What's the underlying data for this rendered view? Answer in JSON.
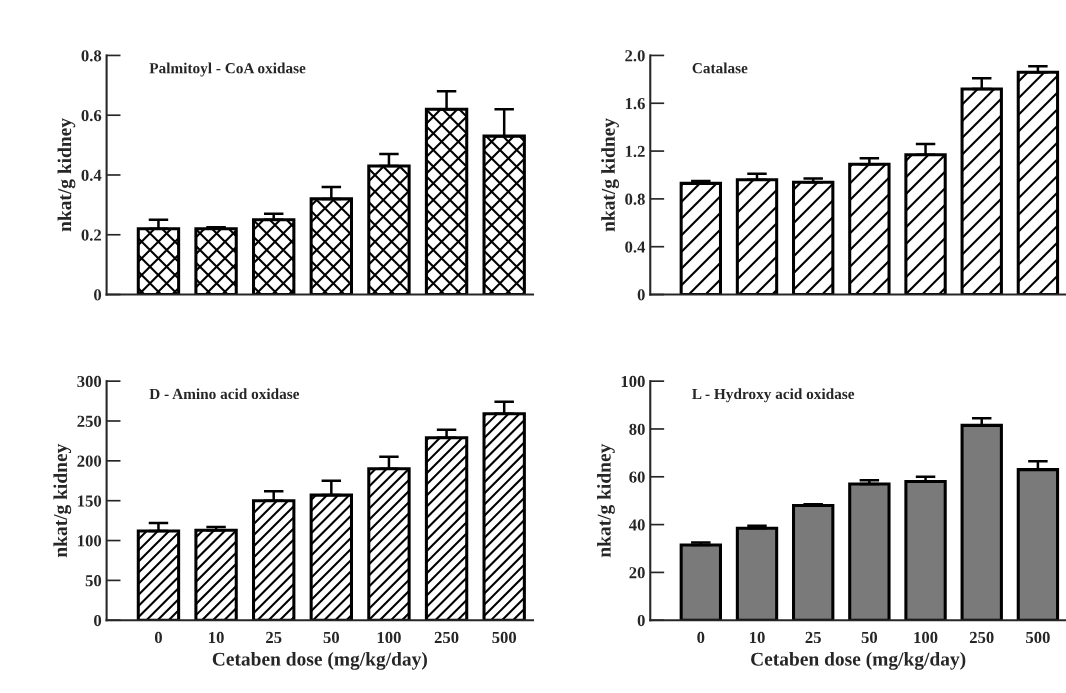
{
  "chart_data": [
    {
      "type": "bar",
      "title": "Palmitoyl - CoA oxidase",
      "ylabel": "nkat/g kidney",
      "categories": [
        "0",
        "10",
        "25",
        "50",
        "100",
        "250",
        "500"
      ],
      "values": [
        0.22,
        0.22,
        0.25,
        0.32,
        0.43,
        0.62,
        0.53
      ],
      "errors": [
        [
          0.22,
          0.25
        ],
        [
          0.22,
          0.225
        ],
        [
          0.25,
          0.27
        ],
        [
          0.32,
          0.36
        ],
        [
          0.43,
          0.47
        ],
        [
          0.62,
          0.68
        ],
        [
          0.53,
          0.62
        ]
      ],
      "ylim": [
        0,
        0.8
      ],
      "yticks": [
        0,
        0.2,
        0.4,
        0.6,
        0.8
      ],
      "tick_labels": "y",
      "grid": false,
      "legend": false
    },
    {
      "type": "bar",
      "title": "Catalase",
      "ylabel": "nkat/g kidney",
      "categories": [
        "0",
        "10",
        "25",
        "50",
        "100",
        "250",
        "500"
      ],
      "values": [
        0.93,
        0.96,
        0.94,
        1.09,
        1.17,
        1.72,
        1.86
      ],
      "errors": [
        [
          0.93,
          0.95
        ],
        [
          0.96,
          1.01
        ],
        [
          0.94,
          0.97
        ],
        [
          1.09,
          1.14
        ],
        [
          1.17,
          1.26
        ],
        [
          1.72,
          1.81
        ],
        [
          1.86,
          1.91
        ]
      ],
      "ylim": [
        0,
        2.0
      ],
      "yticks": [
        0,
        0.4,
        0.8,
        1.2,
        1.6,
        {
          "value": 2.0,
          "label": "2.0"
        }
      ],
      "tick_labels": "y",
      "grid": false,
      "legend": false
    },
    {
      "type": "bar",
      "title": "D - Amino acid oxidase",
      "ylabel": "nkat/g kidney",
      "xlabel": "Cetaben dose (mg/kg/day)",
      "categories": [
        "0",
        "10",
        "25",
        "50",
        "100",
        "250",
        "500"
      ],
      "values": [
        112,
        113,
        150,
        157,
        190,
        229,
        259
      ],
      "errors": [
        [
          112,
          122
        ],
        [
          113,
          117
        ],
        [
          150,
          162
        ],
        [
          157,
          175
        ],
        [
          190,
          205
        ],
        [
          229,
          239
        ],
        [
          259,
          274
        ]
      ],
      "ylim": [
        0,
        300
      ],
      "yticks": [
        0,
        50,
        100,
        150,
        200,
        250,
        300
      ],
      "grid": false,
      "legend": false
    },
    {
      "type": "bar",
      "title": "L - Hydroxy acid oxidase",
      "ylabel": "nkat/g kidney",
      "xlabel": "Cetaben dose (mg/kg/day)",
      "categories": [
        "0",
        "10",
        "25",
        "50",
        "100",
        "250",
        "500"
      ],
      "values": [
        31.5,
        38.5,
        48,
        57,
        58,
        81.5,
        63
      ],
      "errors": [
        [
          31.5,
          32.5
        ],
        [
          38.5,
          39.5
        ],
        [
          48,
          48.5
        ],
        [
          57,
          58.5
        ],
        [
          58,
          60
        ],
        [
          81.5,
          84.5
        ],
        [
          63,
          66.5
        ]
      ],
      "color": "#7a7a7a",
      "ylim": [
        0,
        100
      ],
      "yticks": [
        0,
        20,
        40,
        60,
        80,
        100
      ],
      "grid": false,
      "legend": false
    }
  ]
}
